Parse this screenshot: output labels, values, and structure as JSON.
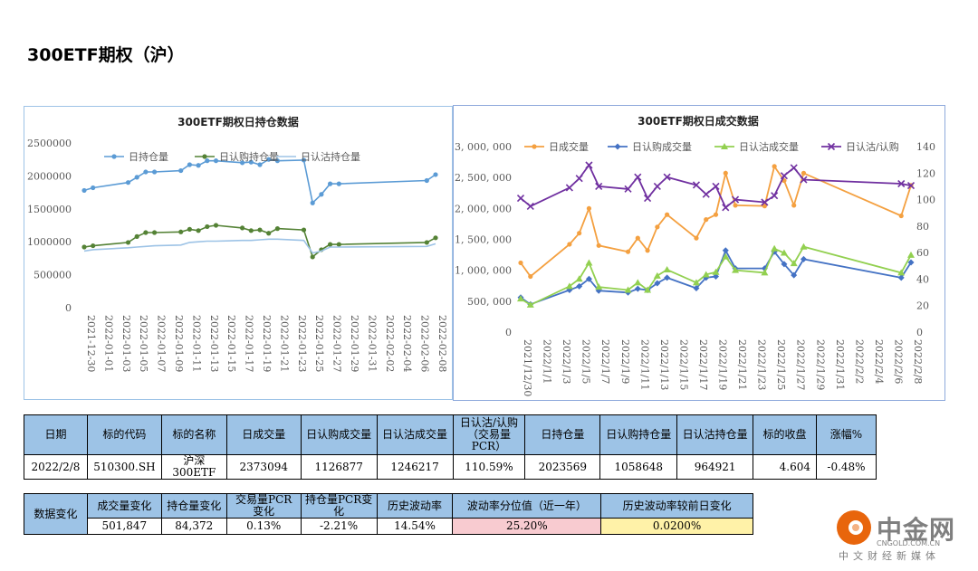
{
  "page": {
    "title": "300ETF期权（沪）"
  },
  "chart_data": [
    {
      "type": "line",
      "title": "300ETF期权日持仓数据",
      "ylim": [
        0,
        2500000
      ],
      "y_ticks": [
        "2500000",
        "2000000",
        "1500000",
        "1000000",
        "500000",
        "0"
      ],
      "x_tick_labels": [
        "2021-12-30",
        "2022-01-01",
        "2022-01-03",
        "2022-01-05",
        "2022-01-07",
        "2022-01-09",
        "2022-01-11",
        "2022-01-13",
        "2022-01-15",
        "2022-01-17",
        "2022-01-19",
        "2022-01-21",
        "2022-01-23",
        "2022-01-25",
        "2022-01-27",
        "2022-01-29",
        "2022-01-31",
        "2022-02-02",
        "2022-02-04",
        "2022-02-06",
        "2022-02-08"
      ],
      "x_start": "2021-12-30",
      "x_end": "2022-02-08",
      "x_dates": [
        "2021-12-30",
        "2021-12-31",
        "2022-01-04",
        "2022-01-05",
        "2022-01-06",
        "2022-01-07",
        "2022-01-10",
        "2022-01-11",
        "2022-01-12",
        "2022-01-13",
        "2022-01-14",
        "2022-01-17",
        "2022-01-18",
        "2022-01-19",
        "2022-01-20",
        "2022-01-21",
        "2022-01-24",
        "2022-01-25",
        "2022-01-26",
        "2022-01-27",
        "2022-01-28",
        "2022-02-07",
        "2022-02-08"
      ],
      "legend_position": "top",
      "series": [
        {
          "name": "日持仓量",
          "color": "#5b9bd5",
          "marker": "circle",
          "values": [
            1780000,
            1820000,
            1900000,
            1980000,
            2060000,
            2060000,
            2080000,
            2170000,
            2160000,
            2230000,
            2230000,
            2200000,
            2210000,
            2170000,
            2250000,
            2230000,
            2240000,
            1590000,
            1720000,
            1880000,
            1880000,
            1930000,
            2020000
          ]
        },
        {
          "name": "日认购持仓量",
          "color": "#548235",
          "marker": "circle",
          "values": [
            920000,
            940000,
            990000,
            1080000,
            1140000,
            1140000,
            1150000,
            1190000,
            1170000,
            1230000,
            1250000,
            1210000,
            1170000,
            1180000,
            1130000,
            1200000,
            1180000,
            770000,
            880000,
            960000,
            960000,
            990000,
            1060000
          ]
        },
        {
          "name": "日认沽持仓量",
          "color": "#9dc3e6",
          "marker": "none",
          "values": [
            860000,
            880000,
            910000,
            920000,
            930000,
            940000,
            950000,
            990000,
            1000000,
            1010000,
            1010000,
            1020000,
            1020000,
            1030000,
            1040000,
            1040000,
            1020000,
            830000,
            860000,
            920000,
            920000,
            930000,
            970000
          ]
        }
      ]
    },
    {
      "type": "line",
      "title": "300ETF期权日成交数据",
      "ylim": [
        0,
        3000000
      ],
      "y2lim": [
        0,
        140
      ],
      "y_ticks": [
        "3, 000, 000",
        "2, 500, 000",
        "2, 000, 000",
        "1, 500, 000",
        "1, 000, 000",
        "500, 000",
        "0"
      ],
      "y2_ticks": [
        "140",
        "120",
        "100",
        "80",
        "60",
        "40",
        "20",
        "0"
      ],
      "x_tick_labels": [
        "2021/12/30",
        "2022/1/1",
        "2022/1/3",
        "2022/1/5",
        "2022/1/7",
        "2022/1/9",
        "2022/1/11",
        "2022/1/13",
        "2022/1/15",
        "2022/1/17",
        "2022/1/19",
        "2022/1/21",
        "2022/1/23",
        "2022/1/25",
        "2022/1/27",
        "2022/1/29",
        "2022/1/31",
        "2022/2/2",
        "2022/2/4",
        "2022/2/6",
        "2022/2/8"
      ],
      "x_start": "2021-12-30",
      "x_end": "2022-02-08",
      "x_dates": [
        "2021-12-30",
        "2021-12-31",
        "2022-01-04",
        "2022-01-05",
        "2022-01-06",
        "2022-01-07",
        "2022-01-10",
        "2022-01-11",
        "2022-01-12",
        "2022-01-13",
        "2022-01-14",
        "2022-01-17",
        "2022-01-18",
        "2022-01-19",
        "2022-01-20",
        "2022-01-21",
        "2022-01-24",
        "2022-01-25",
        "2022-01-26",
        "2022-01-27",
        "2022-01-28",
        "2022-02-07",
        "2022-02-08"
      ],
      "legend_position": "top",
      "series": [
        {
          "name": "日成交量",
          "color": "#f4a040",
          "marker": "circle",
          "axis": "left",
          "values": [
            1120000,
            900000,
            1420000,
            1600000,
            2000000,
            1400000,
            1300000,
            1520000,
            1320000,
            1700000,
            1900000,
            1520000,
            1820000,
            1900000,
            2570000,
            2050000,
            2040000,
            2680000,
            2450000,
            2050000,
            2570000,
            1880000,
            2373094
          ]
        },
        {
          "name": "日认购成交量",
          "color": "#4472c4",
          "marker": "diamond",
          "axis": "left",
          "values": [
            560000,
            450000,
            680000,
            740000,
            860000,
            670000,
            640000,
            700000,
            680000,
            790000,
            880000,
            710000,
            880000,
            900000,
            1320000,
            1030000,
            1030000,
            1300000,
            1100000,
            920000,
            1180000,
            880000,
            1126877
          ]
        },
        {
          "name": "日认沽成交量",
          "color": "#92d050",
          "marker": "triangle",
          "axis": "left",
          "values": [
            540000,
            440000,
            740000,
            860000,
            1120000,
            730000,
            680000,
            800000,
            680000,
            910000,
            1010000,
            800000,
            930000,
            970000,
            1220000,
            1000000,
            960000,
            1350000,
            1280000,
            1110000,
            1380000,
            960000,
            1246217
          ]
        },
        {
          "name": "日认沽/认购",
          "color": "#7030a0",
          "marker": "x",
          "axis": "right",
          "values": [
            101,
            95,
            109,
            116,
            126,
            110,
            108,
            117,
            101,
            110,
            117,
            111,
            104,
            110,
            94,
            100,
            98,
            103,
            118,
            124,
            115,
            112,
            110.59
          ]
        }
      ]
    }
  ],
  "table1": {
    "headers": [
      "日期",
      "标的代码",
      "标的名称",
      "日成交量",
      "日认购成交量",
      "日认沽成交量",
      "日认沽/认购（交易量PCR）",
      "日持仓量",
      "日认购持仓量",
      "日认沽持仓量",
      "标的收盘",
      "涨幅%"
    ],
    "pcr_header_lines": [
      "日认沽/认购",
      "（交易量",
      "PCR）"
    ],
    "row": [
      "2022/2/8",
      "510300.SH",
      "沪深300ETF",
      "2373094",
      "1126877",
      "1246217",
      "110.59%",
      "2023569",
      "1058648",
      "964921",
      "4.604",
      "-0.48%"
    ]
  },
  "table2": {
    "label": "数据变化",
    "headers": [
      "成交量变化",
      "持仓量变化",
      "交易量PCR变化",
      "持仓量PCR变化",
      "历史波动率",
      "波动率分位值（近一年）",
      "历史波动率较前日变化"
    ],
    "header_lines": [
      [
        "成交量变化"
      ],
      [
        "持仓量变化"
      ],
      [
        "交易量PCR",
        "变化"
      ],
      [
        "持仓量PCR变",
        "化"
      ],
      [
        "历史波动率"
      ],
      [
        "波动率分位值（近一年）"
      ],
      [
        "历史波动率较前日变化"
      ]
    ],
    "row": [
      "501,847",
      "84,372",
      "0.13%",
      "-2.21%",
      "14.54%",
      "25.20%",
      "0.0200%"
    ]
  },
  "logo": {
    "cn": "中金网",
    "en": "CNGOLD.COM.CN",
    "sub": "中文财经新媒体"
  }
}
